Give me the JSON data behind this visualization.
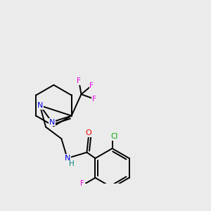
{
  "background_color": "#ebebeb",
  "bond_color": "#000000",
  "bond_width": 1.4,
  "atom_colors": {
    "N": "#0000ee",
    "O": "#ee0000",
    "F": "#ee00ee",
    "Cl": "#00aa00",
    "H": "#008888",
    "C": "#000000"
  },
  "font_size": 7.5
}
